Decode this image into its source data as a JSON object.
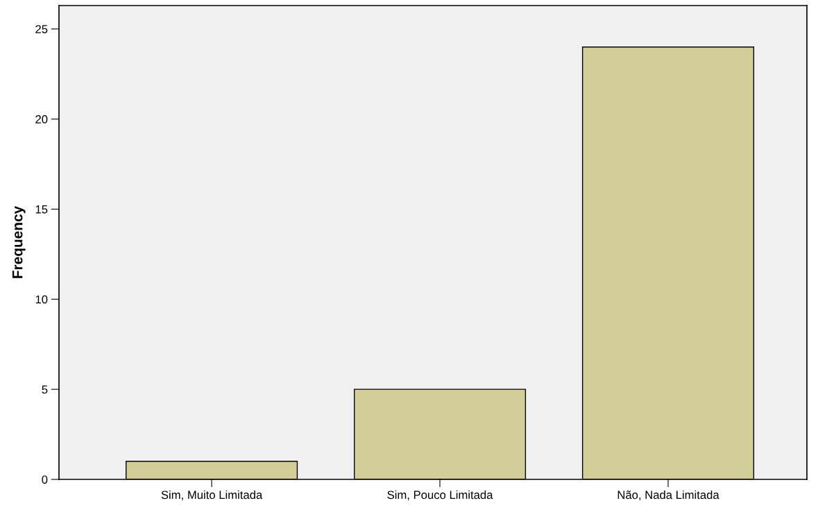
{
  "chart_data": {
    "type": "bar",
    "ylabel": "Frequency",
    "categories": [
      "Sim, Muito Limitada",
      "Sim, Pouco Limitada",
      "Não, Nada Limitada"
    ],
    "values": [
      1,
      5,
      24
    ],
    "color": "#d3ce97",
    "ylim": [
      0,
      26.3
    ],
    "yticks": [
      0,
      5,
      10,
      15,
      20,
      25
    ],
    "grid": false
  }
}
